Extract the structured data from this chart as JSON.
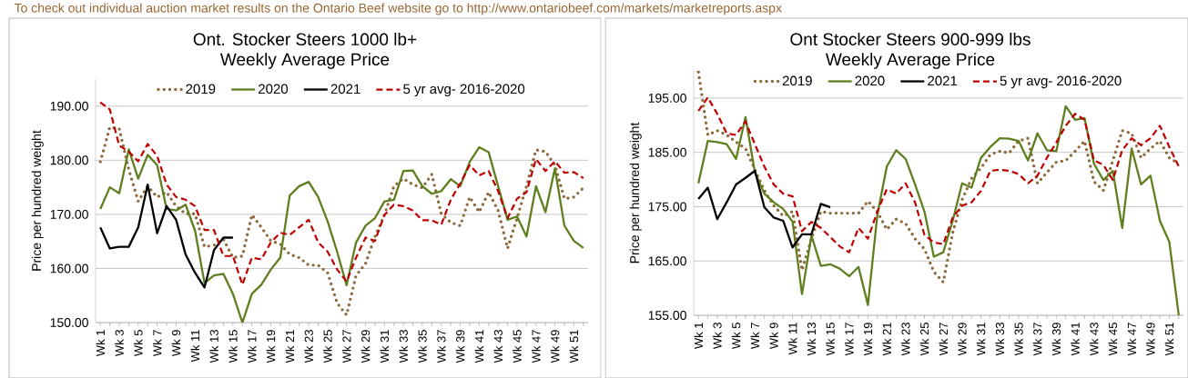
{
  "chart_data": [
    {
      "type": "line",
      "title": "Ont. Stocker Steers 1000 lb+",
      "subtitle": "Weekly Average Price",
      "ylabel": "Price per hundred weight",
      "annotations": [
        "To check out individual auction market results on the Ontario Beef website go to http://www.ontariobeef.com/markets/marketreports.aspx"
      ],
      "categories": [
        "Wk 1",
        null,
        "Wk 3",
        null,
        "Wk 5",
        null,
        "Wk 7",
        null,
        "Wk 9",
        null,
        "Wk 11",
        null,
        "Wk 13",
        null,
        "Wk 15",
        null,
        "Wk 17",
        null,
        "Wk 19",
        null,
        "Wk 21",
        null,
        "Wk 23",
        null,
        "Wk 25",
        null,
        "Wk 27",
        null,
        "Wk 29",
        null,
        "Wk 31",
        null,
        "Wk 33",
        null,
        "Wk 35",
        null,
        "Wk 37",
        null,
        "Wk 39",
        null,
        "Wk 41",
        null,
        "Wk 43",
        null,
        "Wk 45",
        null,
        "Wk 47",
        null,
        "Wk 49",
        null,
        "Wk 51",
        null
      ],
      "series": [
        {
          "name": "2019",
          "color": "#8c6a3c",
          "line_style": "dotted",
          "values": [
            179.7,
            186.1,
            185.8,
            178.3,
            172.4,
            175.2,
            173.2,
            174.1,
            171.5,
            170.1,
            170.1,
            164.0,
            164.3,
            165.4,
            162.0,
            162.3,
            169.9,
            167.6,
            165.1,
            164.5,
            162.6,
            162.0,
            160.6,
            160.6,
            159.2,
            153.6,
            151.4,
            158.7,
            160.9,
            165.9,
            169.9,
            175.2,
            176.6,
            175.5,
            174.9,
            177.4,
            170.1,
            168.5,
            167.9,
            173.2,
            170.4,
            174.1,
            170.7,
            163.7,
            169.3,
            175.2,
            181.9,
            181.6,
            179.1,
            172.9,
            173.2,
            174.9
          ]
        },
        {
          "name": "2020",
          "color": "#5f7f1f",
          "line_style": "solid",
          "values": [
            171.0,
            175.0,
            173.9,
            182.0,
            176.6,
            181.0,
            179.1,
            171.0,
            170.7,
            171.8,
            167.0,
            157.3,
            158.7,
            159.0,
            155.3,
            150.0,
            155.3,
            157.0,
            159.8,
            162.0,
            173.5,
            175.2,
            176.0,
            173.2,
            168.7,
            163.1,
            156.9,
            164.8,
            167.9,
            169.3,
            172.4,
            172.7,
            178.0,
            178.1,
            175.2,
            173.8,
            174.3,
            176.5,
            175.2,
            179.7,
            182.4,
            181.5,
            175.2,
            169.0,
            169.6,
            165.9,
            175.2,
            170.4,
            178.5,
            167.9,
            165.1,
            163.8
          ]
        },
        {
          "name": "2021",
          "color": "#000000",
          "line_style": "solid",
          "values": [
            167.6,
            163.7,
            164.0,
            164.0,
            167.6,
            175.5,
            166.5,
            171.5,
            169.0,
            162.6,
            159.2,
            156.5,
            163.4,
            165.7,
            165.7,
            null,
            null,
            null,
            null,
            null,
            null,
            null,
            null,
            null,
            null,
            null,
            null,
            null,
            null,
            null,
            null,
            null,
            null,
            null,
            null,
            null,
            null,
            null,
            null,
            null,
            null,
            null,
            null,
            null,
            null,
            null,
            null,
            null,
            null,
            null,
            null,
            null
          ]
        },
        {
          "name": "5 yr avg- 2016-2020",
          "color": "#c00000",
          "line_style": "dashed",
          "values": [
            190.7,
            189.4,
            182.7,
            181.6,
            179.8,
            183.0,
            180.8,
            175.5,
            173.2,
            172.7,
            171.5,
            167.1,
            167.1,
            162.3,
            162.3,
            157.0,
            162.0,
            161.7,
            164.8,
            166.6,
            166.2,
            167.6,
            169.0,
            164.8,
            163.1,
            159.8,
            157.6,
            162.0,
            165.7,
            165.1,
            169.9,
            171.8,
            171.5,
            170.7,
            168.9,
            168.9,
            168.1,
            172.7,
            175.7,
            179.1,
            177.2,
            178.0,
            174.3,
            169.3,
            172.9,
            174.1,
            180.2,
            178.0,
            179.8,
            177.7,
            177.8,
            176.7
          ]
        }
      ],
      "ylim": [
        150,
        195
      ],
      "yticks": [
        {
          "value": 150,
          "label": "150.00"
        },
        {
          "value": 160,
          "label": "160.00"
        },
        {
          "value": 170,
          "label": "170.00"
        },
        {
          "value": 180,
          "label": "180.00"
        },
        {
          "value": 190,
          "label": "190.00"
        }
      ],
      "grid": "y",
      "legend": "top"
    },
    {
      "type": "line",
      "title": "Ont Stocker Steers 900-999 lbs",
      "subtitle": "Weekly Average Price",
      "ylabel": "Price per hundred weight",
      "categories": [
        "Wk 1",
        null,
        "Wk 3",
        null,
        "Wk 5",
        null,
        "Wk 7",
        null,
        "Wk 9",
        null,
        "Wk 11",
        null,
        "Wk 13",
        null,
        "Wk 15",
        null,
        "Wk 17",
        null,
        "Wk 19",
        null,
        "Wk 21",
        null,
        "Wk 23",
        null,
        "Wk 25",
        null,
        "Wk 27",
        null,
        "Wk 29",
        null,
        "Wk 31",
        null,
        "Wk 33",
        null,
        "Wk 35",
        null,
        "Wk 37",
        null,
        "Wk 39",
        null,
        "Wk 41",
        null,
        "Wk 43",
        null,
        "Wk 45",
        null,
        "Wk 47",
        null,
        "Wk 49",
        null,
        "Wk 51",
        null
      ],
      "series": [
        {
          "name": "2019",
          "color": "#8c6a3c",
          "line_style": "dotted",
          "values": [
            199.8,
            188.2,
            189.0,
            188.2,
            186.9,
            185.7,
            181.8,
            178.0,
            175.2,
            173.3,
            174.1,
            163.3,
            169.1,
            174.1,
            173.8,
            173.8,
            173.8,
            173.8,
            176.0,
            174.1,
            170.8,
            172.7,
            171.9,
            169.1,
            167.2,
            163.0,
            161.1,
            170.2,
            176.3,
            180.2,
            182.1,
            184.6,
            185.2,
            184.9,
            187.1,
            187.6,
            179.3,
            181.3,
            183.2,
            183.5,
            185.2,
            187.1,
            179.6,
            178.0,
            183.5,
            189.0,
            188.5,
            184.0,
            185.7,
            187.1,
            184.0,
            182.9
          ]
        },
        {
          "name": "2020",
          "color": "#5f7f1f",
          "line_style": "solid",
          "values": [
            179.3,
            187.1,
            186.9,
            186.5,
            183.8,
            191.5,
            181.3,
            177.4,
            175.8,
            174.6,
            172.2,
            158.9,
            169.7,
            164.1,
            164.4,
            163.6,
            162.2,
            163.9,
            156.9,
            173.5,
            182.4,
            185.4,
            183.8,
            179.1,
            174.1,
            165.8,
            166.6,
            172.4,
            179.3,
            178.5,
            184.0,
            186.0,
            187.6,
            187.5,
            187.1,
            183.5,
            188.5,
            185.4,
            185.2,
            193.5,
            191.0,
            191.3,
            182.9,
            179.9,
            181.6,
            171.1,
            185.7,
            179.1,
            180.7,
            172.4,
            168.5,
            155.0
          ]
        },
        {
          "name": "2021",
          "color": "#000000",
          "line_style": "solid",
          "values": [
            176.4,
            178.5,
            172.7,
            175.8,
            179.1,
            180.3,
            181.6,
            174.9,
            173.0,
            172.4,
            167.5,
            169.9,
            169.9,
            175.5,
            174.9,
            null,
            null,
            null,
            null,
            null,
            null,
            null,
            null,
            null,
            null,
            null,
            null,
            null,
            null,
            null,
            null,
            null,
            null,
            null,
            null,
            null,
            null,
            null,
            null,
            null,
            null,
            null,
            null,
            null,
            null,
            null,
            null,
            null,
            null,
            null,
            null,
            null
          ]
        },
        {
          "name": "5 yr avg- 2016-2020",
          "color": "#c00000",
          "line_style": "dashed",
          "values": [
            192.6,
            195.1,
            192.1,
            188.5,
            188.2,
            190.7,
            186.5,
            182.4,
            179.1,
            177.4,
            176.9,
            170.5,
            172.2,
            171.1,
            169.4,
            167.7,
            166.6,
            171.1,
            169.1,
            174.1,
            178.2,
            177.4,
            179.3,
            175.8,
            169.8,
            168.4,
            168.1,
            173.0,
            175.2,
            175.8,
            177.9,
            181.6,
            181.8,
            181.6,
            181.0,
            179.3,
            180.7,
            184.0,
            186.8,
            189.9,
            192.1,
            191.0,
            183.5,
            182.7,
            179.9,
            185.4,
            187.6,
            186.3,
            187.6,
            189.9,
            186.0,
            182.4
          ]
        }
      ],
      "ylim": [
        155,
        200
      ],
      "yticks": [
        {
          "value": 155,
          "label": "155.00"
        },
        {
          "value": 165,
          "label": "165.00"
        },
        {
          "value": 175,
          "label": "175.00"
        },
        {
          "value": 185,
          "label": "185.00"
        },
        {
          "value": 195,
          "label": "195.00"
        }
      ],
      "grid": "y",
      "legend": "top"
    }
  ]
}
